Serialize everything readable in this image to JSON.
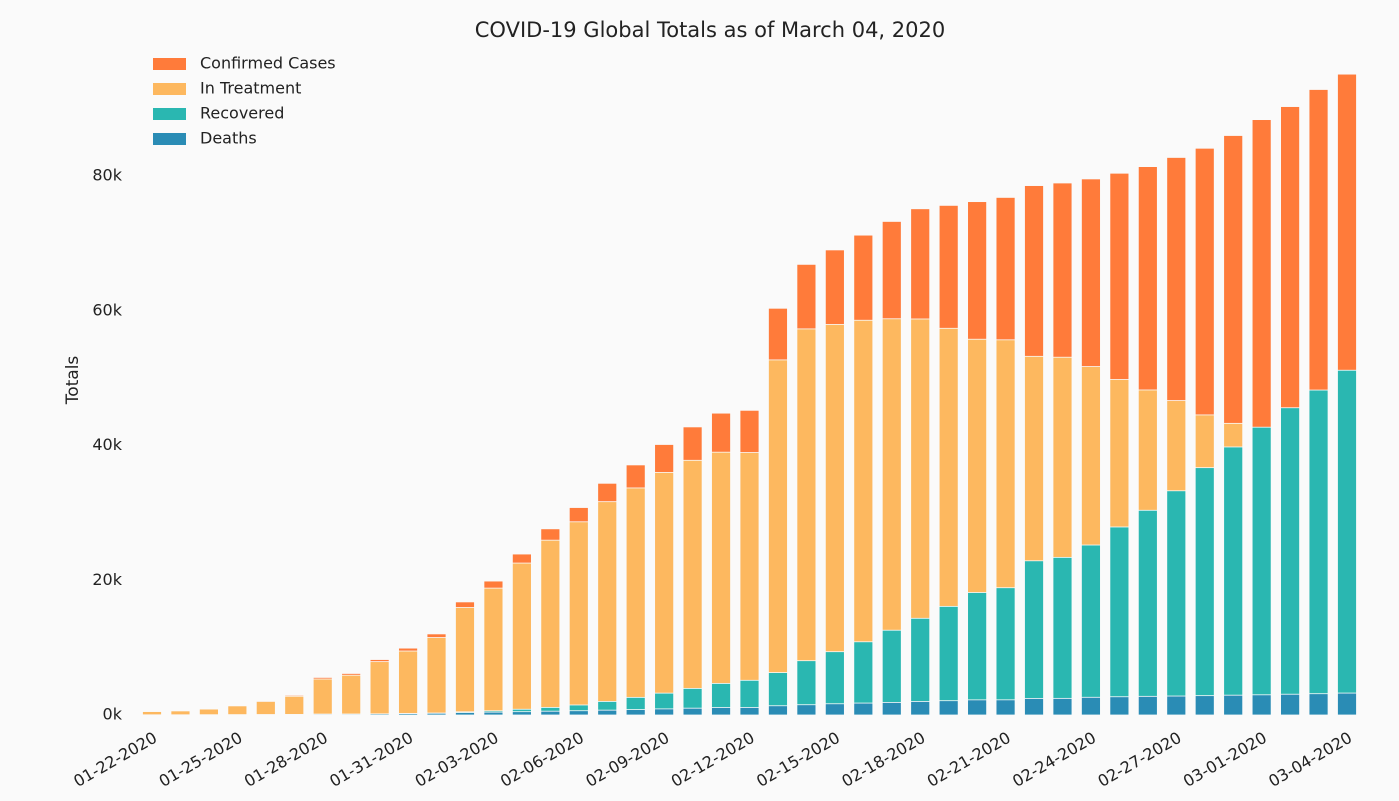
{
  "chart_data": {
    "type": "bar",
    "mode": "overlap",
    "title": "COVID-19 Global Totals as of March 04, 2020",
    "y_label": "Totals",
    "categories": [
      "01-22-2020",
      null,
      null,
      "01-25-2020",
      null,
      null,
      "01-28-2020",
      null,
      null,
      "01-31-2020",
      null,
      null,
      "02-03-2020",
      null,
      null,
      "02-06-2020",
      null,
      null,
      "02-09-2020",
      null,
      null,
      "02-12-2020",
      null,
      null,
      "02-15-2020",
      null,
      null,
      "02-18-2020",
      null,
      null,
      "02-21-2020",
      null,
      null,
      "02-24-2020",
      null,
      null,
      "02-27-2020",
      null,
      null,
      "03-01-2020",
      null,
      null,
      "03-04-2020"
    ],
    "series": [
      {
        "name": "Confirmed Cases",
        "color": "#ff7b3a",
        "values": [
          555,
          654,
          941,
          1434,
          2118,
          2927,
          5578,
          6166,
          8234,
          9927,
          12038,
          16787,
          19881,
          23892,
          27635,
          30794,
          34391,
          37120,
          40150,
          42762,
          44802,
          45221,
          60368,
          66885,
          69030,
          71224,
          73258,
          75136,
          75639,
          76197,
          76823,
          78579,
          78965,
          79568,
          80413,
          81395,
          82754,
          84120,
          86011,
          88369,
          90306,
          92840,
          95120
        ]
      },
      {
        "name": "In Treatment",
        "color": "#fdb85f",
        "values": [
          510,
          606,
          879,
          1353,
          2010,
          2784,
          5340,
          5907,
          7920,
          9492,
          11495,
          15953,
          18832,
          22548,
          25947,
          28673,
          31661,
          33698,
          36000,
          37803,
          39006,
          38953,
          52702,
          57304,
          57969,
          58589,
          58807,
          58777,
          57396,
          55773,
          55682,
          53235,
          53102,
          51712,
          49800,
          48241,
          46663,
          44537,
          43288,
          42657,
          41619,
          41452,
          40696
        ]
      },
      {
        "name": "Recovered",
        "color": "#2ab7b1",
        "values": [
          28,
          30,
          36,
          39,
          52,
          61,
          107,
          126,
          143,
          222,
          284,
          472,
          623,
          852,
          1124,
          1487,
          2011,
          2616,
          3244,
          3946,
          4683,
          5150,
          6295,
          8058,
          9395,
          10865,
          12583,
          14352,
          16121,
          18177,
          18890,
          22886,
          23394,
          25227,
          27905,
          30384,
          33277,
          36711,
          39782,
          42716,
          45602,
          48228,
          51170
        ]
      },
      {
        "name": "Deaths",
        "color": "#2a8cb5",
        "values": [
          17,
          18,
          26,
          42,
          56,
          82,
          131,
          133,
          171,
          213,
          259,
          362,
          426,
          492,
          564,
          634,
          719,
          806,
          906,
          1013,
          1113,
          1118,
          1371,
          1523,
          1666,
          1770,
          1868,
          2007,
          2122,
          2247,
          2251,
          2458,
          2469,
          2629,
          2708,
          2770,
          2814,
          2872,
          2941,
          2996,
          3085,
          3160,
          3254
        ]
      }
    ],
    "ylim": [
      0,
      96000
    ],
    "yticks": [
      {
        "value": 0,
        "label": "0k"
      },
      {
        "value": 20000,
        "label": "20k"
      },
      {
        "value": 40000,
        "label": "40k"
      },
      {
        "value": 60000,
        "label": "60k"
      },
      {
        "value": 80000,
        "label": "80k"
      }
    ],
    "grid": false,
    "legend": "upper-left"
  }
}
